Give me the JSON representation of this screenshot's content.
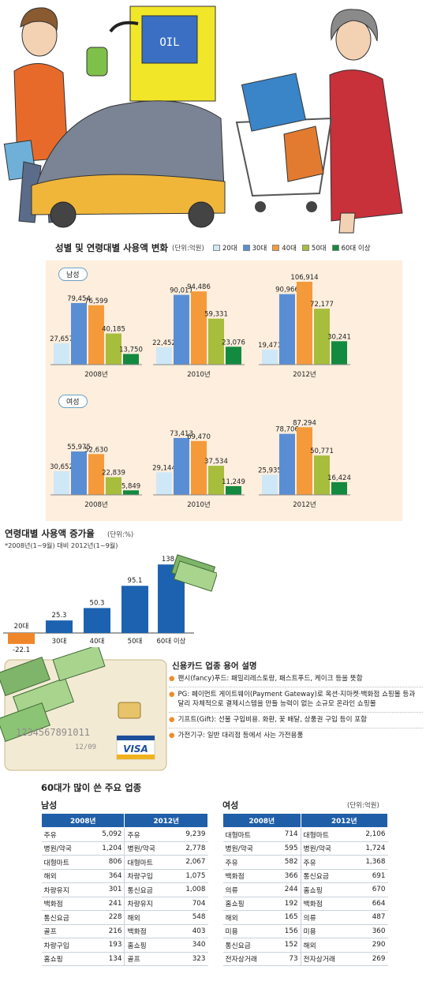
{
  "chart_data": [
    {
      "type": "bar",
      "title": "성별 및 연령대별 사용액 변화",
      "unit": "(단위:억원)",
      "group": "남성",
      "categories": [
        "2008년",
        "2010년",
        "2012년"
      ],
      "series": [
        {
          "name": "20대",
          "values": [
            27657,
            22452,
            19471
          ]
        },
        {
          "name": "30대",
          "values": [
            79454,
            90011,
            90966
          ]
        },
        {
          "name": "40대",
          "values": [
            76599,
            94486,
            106914
          ]
        },
        {
          "name": "50대",
          "values": [
            40185,
            59331,
            72177
          ]
        },
        {
          "name": "60대 이상",
          "values": [
            13750,
            23076,
            30241
          ]
        }
      ],
      "labels": [
        [
          "27,657",
          "79,454",
          "76,599",
          "40,185",
          "13,750"
        ],
        [
          "22,452",
          "90,011",
          "94,486",
          "59,331",
          "23,076"
        ],
        [
          "19,471",
          "90,966",
          "106,914",
          "72,177",
          "30,241"
        ]
      ],
      "ylim": [
        0,
        112000
      ]
    },
    {
      "type": "bar",
      "group": "여성",
      "categories": [
        "2008년",
        "2010년",
        "2012년"
      ],
      "series": [
        {
          "name": "20대",
          "values": [
            30652,
            29144,
            25935
          ]
        },
        {
          "name": "30대",
          "values": [
            55975,
            73413,
            78706
          ]
        },
        {
          "name": "40대",
          "values": [
            52630,
            69470,
            87294
          ]
        },
        {
          "name": "50대",
          "values": [
            22839,
            37534,
            50771
          ]
        },
        {
          "name": "60대 이상",
          "values": [
            5849,
            11249,
            16424
          ]
        }
      ],
      "labels": [
        [
          "30,652",
          "55,975",
          "52,630",
          "22,839",
          "5,849"
        ],
        [
          "29,144",
          "73,413",
          "69,470",
          "37,534",
          "11,249"
        ],
        [
          "25,935",
          "78,706",
          "87,294",
          "50,771",
          "16,424"
        ]
      ],
      "ylim": [
        0,
        112000
      ]
    },
    {
      "type": "bar",
      "title": "연령대별 사용액 증가율",
      "unit": "(단위:%)",
      "subtitle": "*2008년(1~9월) 대비 2012년(1~9월)",
      "categories": [
        "20대",
        "30대",
        "40대",
        "50대",
        "60대 이상"
      ],
      "values": [
        -22.1,
        25.3,
        50.3,
        95.1,
        138.1
      ],
      "labels": [
        "-22.1",
        "25.3",
        "50.3",
        "95.1",
        "138.1"
      ],
      "ylim": [
        -30,
        140
      ]
    },
    {
      "type": "table",
      "title": "60대가 많이 쓴 주요 업종",
      "unit": "(단위:억원)",
      "tables": [
        {
          "label": "남성",
          "columns": [
            "2008년",
            "2012년"
          ],
          "rows": [
            [
              "주유",
              "5,092",
              "주유",
              "9,239"
            ],
            [
              "병원/약국",
              "1,204",
              "병원/약국",
              "2,778"
            ],
            [
              "대형마트",
              "806",
              "대형마트",
              "2,067"
            ],
            [
              "해외",
              "364",
              "차량구입",
              "1,075"
            ],
            [
              "차량유지",
              "301",
              "통신요금",
              "1,008"
            ],
            [
              "백화점",
              "241",
              "차량유지",
              "704"
            ],
            [
              "통신요금",
              "228",
              "해외",
              "548"
            ],
            [
              "골프",
              "216",
              "백화점",
              "403"
            ],
            [
              "차량구입",
              "193",
              "홈쇼핑",
              "340"
            ],
            [
              "홈쇼핑",
              "134",
              "골프",
              "323"
            ]
          ]
        },
        {
          "label": "여성",
          "columns": [
            "2008년",
            "2012년"
          ],
          "rows": [
            [
              "대형마트",
              "714",
              "대형마트",
              "2,106"
            ],
            [
              "병원/약국",
              "595",
              "병원/약국",
              "1,724"
            ],
            [
              "주유",
              "582",
              "주유",
              "1,368"
            ],
            [
              "백화점",
              "366",
              "통신요금",
              "691"
            ],
            [
              "의류",
              "244",
              "홈쇼핑",
              "670"
            ],
            [
              "홈쇼핑",
              "192",
              "백화점",
              "664"
            ],
            [
              "해외",
              "165",
              "의류",
              "487"
            ],
            [
              "미용",
              "156",
              "미용",
              "360"
            ],
            [
              "통신요금",
              "152",
              "해외",
              "290"
            ],
            [
              "전자상거래",
              "73",
              "전자상거래",
              "269"
            ]
          ]
        }
      ]
    }
  ],
  "colors": {
    "20대": "#cfe8f7",
    "30대": "#5a8ed4",
    "40대": "#f59a3a",
    "50대": "#a7bd3c",
    "60대 이상": "#138a3f",
    "growth_pos": "#1c62b0",
    "growth_neg": "#f0862a",
    "table_header": "#1f5fa8"
  },
  "illustration": {
    "pump_sign": "OIL"
  },
  "card_notes": {
    "title": "신용카드 업종 용어 설명",
    "items": [
      "팬시(fancy)푸드: 패밀리레스토랑, 패스트푸드, 케이크 등을 뜻함",
      "PG: 페이먼트 게이트웨이(Payment Gateway)로 옥션·지마켓·백화점 쇼핑몰 등과 달리 자체적으로 결제시스템을 만들 능력이 없는 소규모 온라인 쇼핑몰",
      "기프트(Gift): 선물 구입비용. 화환, 꽃 배달, 상품권 구입 등이 포함",
      "가전기구: 일반 대리점 등에서 사는 가전용품"
    ],
    "card_number": "1234567891011",
    "card_expiry": "12/09",
    "card_brand": "VISA"
  }
}
